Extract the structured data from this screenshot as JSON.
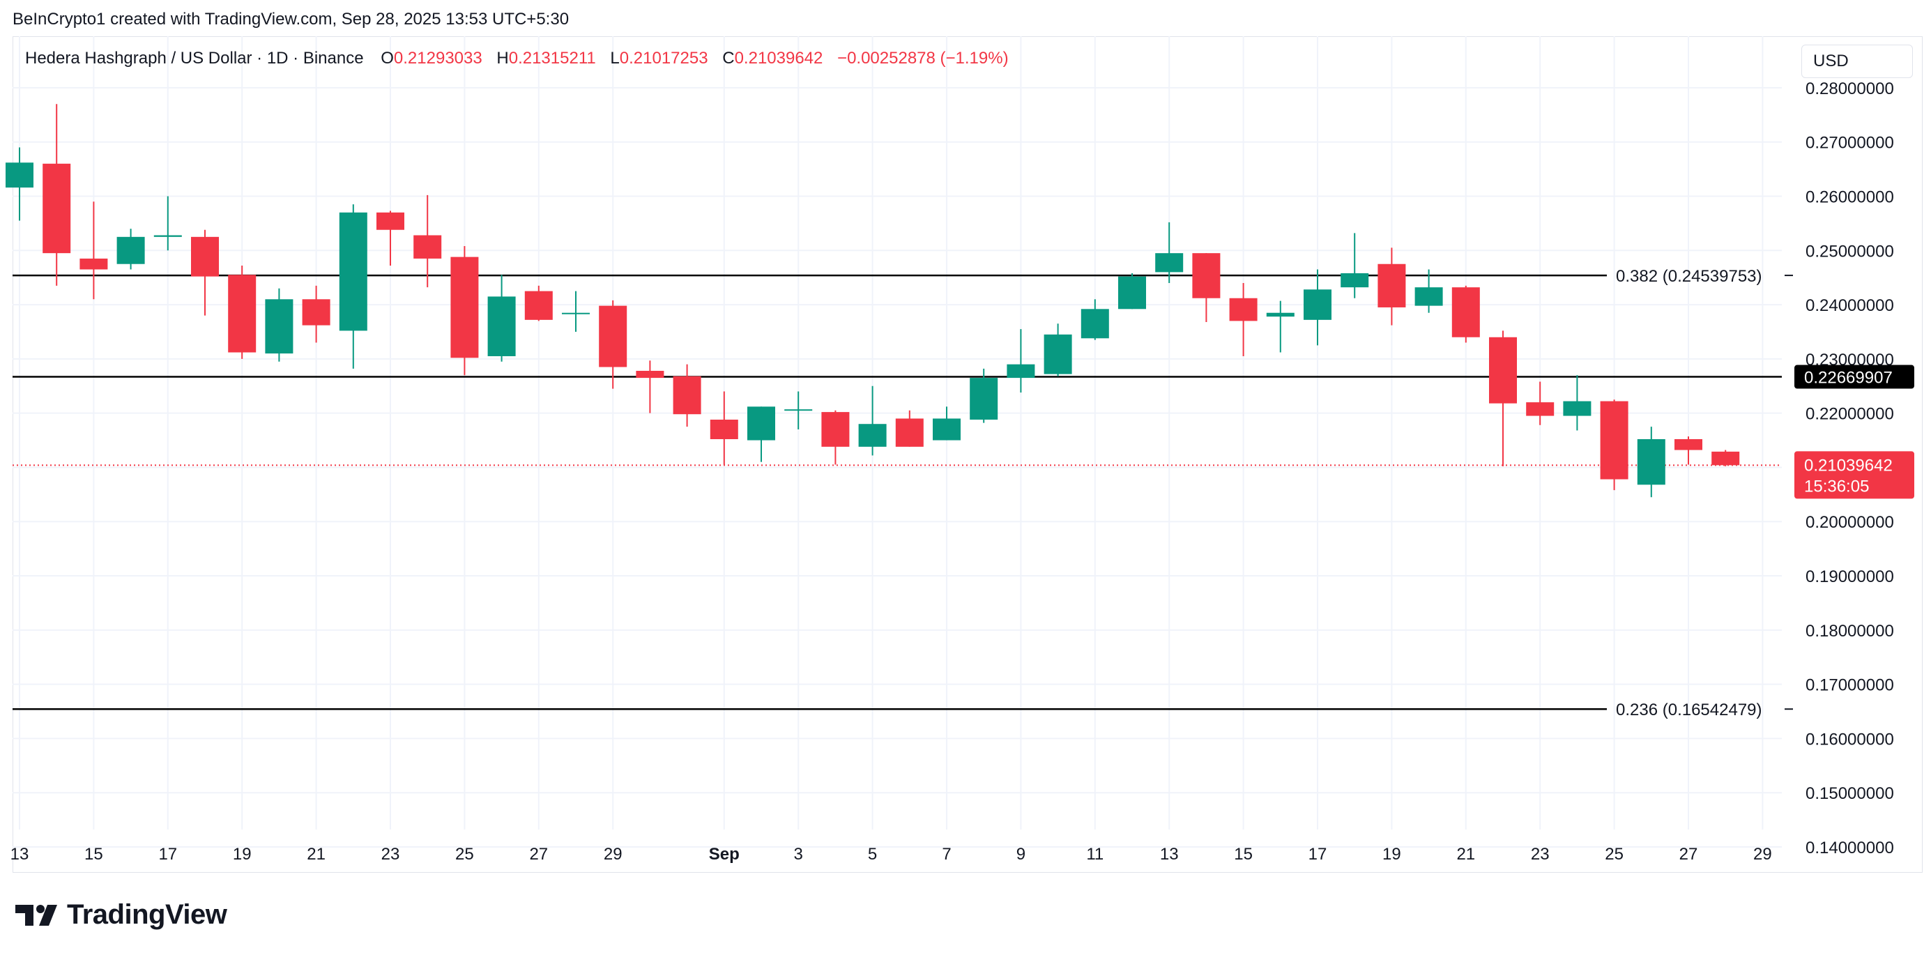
{
  "attribution": "BeInCrypto1 created with TradingView.com, Sep 28, 2025 13:53 UTC+5:30",
  "legend": {
    "symbol": "Hedera Hashgraph / US Dollar · 1D · Binance",
    "o_label": "O",
    "o_value": "0.21293033",
    "h_label": "H",
    "h_value": "0.21315211",
    "l_label": "L",
    "l_value": "0.21017253",
    "c_label": "C",
    "c_value": "0.21039642",
    "change": "−0.00252878 (−1.19%)"
  },
  "currency": "USD",
  "brand": "TradingView",
  "colors": {
    "up": "#089981",
    "down": "#f23645",
    "grid": "#f0f3fa",
    "text": "#131722",
    "line": "#000000"
  },
  "chart_data": {
    "type": "candlestick",
    "title": "Hedera Hashgraph / US Dollar · 1D · Binance",
    "ylim": [
      0.1355,
      0.2895
    ],
    "y_ticks": [
      "0.28000000",
      "0.27000000",
      "0.26000000",
      "0.25000000",
      "0.24000000",
      "0.23000000",
      "0.22000000",
      "0.21000000",
      "0.20000000",
      "0.19000000",
      "0.18000000",
      "0.17000000",
      "0.16000000",
      "0.15000000",
      "0.14000000"
    ],
    "x_ticks": [
      {
        "day": 0,
        "label": "13"
      },
      {
        "day": 2,
        "label": "15"
      },
      {
        "day": 4,
        "label": "17"
      },
      {
        "day": 6,
        "label": "19"
      },
      {
        "day": 8,
        "label": "21"
      },
      {
        "day": 10,
        "label": "23"
      },
      {
        "day": 12,
        "label": "25"
      },
      {
        "day": 14,
        "label": "27"
      },
      {
        "day": 16,
        "label": "29"
      },
      {
        "day": 19,
        "label": "Sep",
        "bold": true
      },
      {
        "day": 21,
        "label": "3"
      },
      {
        "day": 23,
        "label": "5"
      },
      {
        "day": 25,
        "label": "7"
      },
      {
        "day": 27,
        "label": "9"
      },
      {
        "day": 29,
        "label": "11"
      },
      {
        "day": 31,
        "label": "13"
      },
      {
        "day": 33,
        "label": "15"
      },
      {
        "day": 35,
        "label": "17"
      },
      {
        "day": 37,
        "label": "19"
      },
      {
        "day": 39,
        "label": "21"
      },
      {
        "day": 41,
        "label": "23"
      },
      {
        "day": 43,
        "label": "25"
      },
      {
        "day": 45,
        "label": "27"
      },
      {
        "day": 47,
        "label": "29"
      }
    ],
    "candles": [
      {
        "d": 0,
        "o": 0.2616,
        "h": 0.269,
        "l": 0.2555,
        "c": 0.2662
      },
      {
        "d": 1,
        "o": 0.266,
        "h": 0.277,
        "l": 0.2435,
        "c": 0.2495
      },
      {
        "d": 2,
        "o": 0.2485,
        "h": 0.259,
        "l": 0.241,
        "c": 0.2465
      },
      {
        "d": 3,
        "o": 0.2475,
        "h": 0.254,
        "l": 0.2465,
        "c": 0.2525
      },
      {
        "d": 4,
        "o": 0.2525,
        "h": 0.26,
        "l": 0.25,
        "c": 0.2528
      },
      {
        "d": 5,
        "o": 0.2525,
        "h": 0.2538,
        "l": 0.238,
        "c": 0.2452
      },
      {
        "d": 6,
        "o": 0.2455,
        "h": 0.2472,
        "l": 0.23,
        "c": 0.2312
      },
      {
        "d": 7,
        "o": 0.231,
        "h": 0.243,
        "l": 0.2295,
        "c": 0.241
      },
      {
        "d": 8,
        "o": 0.241,
        "h": 0.2435,
        "l": 0.233,
        "c": 0.2362
      },
      {
        "d": 9,
        "o": 0.2352,
        "h": 0.2585,
        "l": 0.2282,
        "c": 0.257
      },
      {
        "d": 10,
        "o": 0.257,
        "h": 0.2573,
        "l": 0.2472,
        "c": 0.2538
      },
      {
        "d": 11,
        "o": 0.2528,
        "h": 0.2602,
        "l": 0.2432,
        "c": 0.2485
      },
      {
        "d": 12,
        "o": 0.2488,
        "h": 0.2508,
        "l": 0.227,
        "c": 0.2302
      },
      {
        "d": 13,
        "o": 0.2305,
        "h": 0.2455,
        "l": 0.2295,
        "c": 0.2415
      },
      {
        "d": 14,
        "o": 0.2425,
        "h": 0.2435,
        "l": 0.237,
        "c": 0.2372
      },
      {
        "d": 15,
        "o": 0.2385,
        "h": 0.2425,
        "l": 0.235,
        "c": 0.2385
      },
      {
        "d": 16,
        "o": 0.2398,
        "h": 0.2408,
        "l": 0.2245,
        "c": 0.2285
      },
      {
        "d": 17,
        "o": 0.2278,
        "h": 0.2297,
        "l": 0.22,
        "c": 0.2265
      },
      {
        "d": 18,
        "o": 0.2268,
        "h": 0.229,
        "l": 0.2175,
        "c": 0.2198
      },
      {
        "d": 19,
        "o": 0.2188,
        "h": 0.224,
        "l": 0.2105,
        "c": 0.2152
      },
      {
        "d": 20,
        "o": 0.215,
        "h": 0.2212,
        "l": 0.211,
        "c": 0.2212
      },
      {
        "d": 21,
        "o": 0.2207,
        "h": 0.224,
        "l": 0.217,
        "c": 0.2207
      },
      {
        "d": 22,
        "o": 0.2202,
        "h": 0.2205,
        "l": 0.2105,
        "c": 0.2138
      },
      {
        "d": 23,
        "o": 0.2138,
        "h": 0.225,
        "l": 0.2122,
        "c": 0.218
      },
      {
        "d": 24,
        "o": 0.219,
        "h": 0.2205,
        "l": 0.2138,
        "c": 0.2138
      },
      {
        "d": 25,
        "o": 0.215,
        "h": 0.2212,
        "l": 0.215,
        "c": 0.219
      },
      {
        "d": 26,
        "o": 0.2188,
        "h": 0.2282,
        "l": 0.2182,
        "c": 0.2265
      },
      {
        "d": 27,
        "o": 0.2265,
        "h": 0.2355,
        "l": 0.2238,
        "c": 0.229
      },
      {
        "d": 28,
        "o": 0.2272,
        "h": 0.2365,
        "l": 0.2268,
        "c": 0.2345
      },
      {
        "d": 29,
        "o": 0.2338,
        "h": 0.241,
        "l": 0.2335,
        "c": 0.2392
      },
      {
        "d": 30,
        "o": 0.2392,
        "h": 0.2458,
        "l": 0.2392,
        "c": 0.2452
      },
      {
        "d": 31,
        "o": 0.246,
        "h": 0.2552,
        "l": 0.244,
        "c": 0.2495
      },
      {
        "d": 32,
        "o": 0.2495,
        "h": 0.2495,
        "l": 0.2368,
        "c": 0.2412
      },
      {
        "d": 33,
        "o": 0.2412,
        "h": 0.244,
        "l": 0.2305,
        "c": 0.237
      },
      {
        "d": 34,
        "o": 0.2378,
        "h": 0.2407,
        "l": 0.2312,
        "c": 0.2385
      },
      {
        "d": 35,
        "o": 0.2372,
        "h": 0.2465,
        "l": 0.2325,
        "c": 0.2428
      },
      {
        "d": 36,
        "o": 0.2432,
        "h": 0.2532,
        "l": 0.2412,
        "c": 0.2458
      },
      {
        "d": 37,
        "o": 0.2475,
        "h": 0.2505,
        "l": 0.2362,
        "c": 0.2395
      },
      {
        "d": 38,
        "o": 0.2398,
        "h": 0.2465,
        "l": 0.2385,
        "c": 0.2432
      },
      {
        "d": 39,
        "o": 0.2432,
        "h": 0.2435,
        "l": 0.233,
        "c": 0.234
      },
      {
        "d": 40,
        "o": 0.234,
        "h": 0.2352,
        "l": 0.2102,
        "c": 0.2218
      },
      {
        "d": 41,
        "o": 0.222,
        "h": 0.2258,
        "l": 0.2178,
        "c": 0.2195
      },
      {
        "d": 42,
        "o": 0.2195,
        "h": 0.227,
        "l": 0.2168,
        "c": 0.2222
      },
      {
        "d": 43,
        "o": 0.2222,
        "h": 0.2225,
        "l": 0.2058,
        "c": 0.2078
      },
      {
        "d": 44,
        "o": 0.2068,
        "h": 0.2175,
        "l": 0.2045,
        "c": 0.2152
      },
      {
        "d": 45,
        "o": 0.2152,
        "h": 0.2157,
        "l": 0.2105,
        "c": 0.2132
      },
      {
        "d": 46,
        "o": 0.2129,
        "h": 0.2132,
        "l": 0.2102,
        "c": 0.2104
      }
    ],
    "fib_levels": [
      {
        "value": 0.24539753,
        "label": "0.382 (0.24539753)"
      },
      {
        "value": 0.16542479,
        "label": "0.236 (0.16542479)"
      }
    ],
    "hline": {
      "value": 0.22669907,
      "label": "0.22669907"
    },
    "last_price": {
      "value": 0.21039642,
      "label": "0.21039642",
      "countdown": "15:36:05"
    }
  }
}
